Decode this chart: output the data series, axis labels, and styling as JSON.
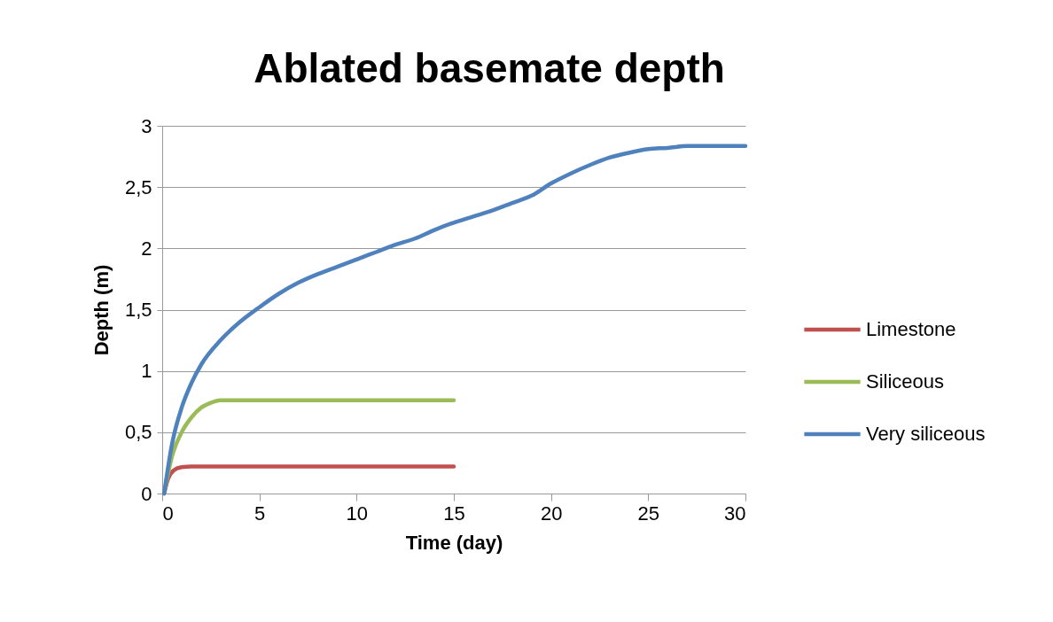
{
  "chart_data": {
    "type": "line",
    "title": "Ablated basemate depth",
    "xlabel": "Time (day)",
    "ylabel": "Depth (m)",
    "xlim": [
      0,
      30
    ],
    "xticks": [
      0,
      5,
      10,
      15,
      20,
      25,
      30
    ],
    "ylim": [
      0,
      3
    ],
    "yticks": [
      0,
      {
        "value": 0.5,
        "label": "0,5"
      },
      1,
      {
        "value": 1.5,
        "label": "1,5"
      },
      2,
      {
        "value": 2.5,
        "label": "2,5"
      },
      3
    ],
    "grid": "y",
    "legend": "right",
    "marker": "none",
    "line_style": "solid",
    "series": [
      {
        "name": "Limestone",
        "color": "#c0504d",
        "x": [
          0.1,
          0.3,
          0.6,
          1,
          1.5,
          15
        ],
        "values": [
          0,
          0.12,
          0.19,
          0.215,
          0.22,
          0.22
        ]
      },
      {
        "name": "Siliceous",
        "color": "#9bbb59",
        "x": [
          0.1,
          0.5,
          1,
          1.5,
          2,
          2.5,
          3,
          15
        ],
        "values": [
          0,
          0.3,
          0.5,
          0.62,
          0.7,
          0.74,
          0.76,
          0.76
        ]
      },
      {
        "name": "Very siliceous",
        "color": "#4f81bd",
        "x": [
          0.1,
          0.5,
          1,
          1.5,
          2,
          3,
          4,
          5,
          6,
          7,
          8,
          9,
          10,
          11,
          12,
          13,
          14,
          15,
          16,
          17,
          18,
          19,
          20,
          21,
          22,
          23,
          24,
          25,
          26,
          27,
          30
        ],
        "values": [
          0,
          0.4,
          0.7,
          0.9,
          1.05,
          1.25,
          1.4,
          1.52,
          1.63,
          1.72,
          1.79,
          1.85,
          1.91,
          1.97,
          2.03,
          2.08,
          2.15,
          2.21,
          2.26,
          2.31,
          2.37,
          2.43,
          2.53,
          2.61,
          2.68,
          2.74,
          2.78,
          2.81,
          2.82,
          2.835,
          2.835
        ]
      }
    ]
  }
}
